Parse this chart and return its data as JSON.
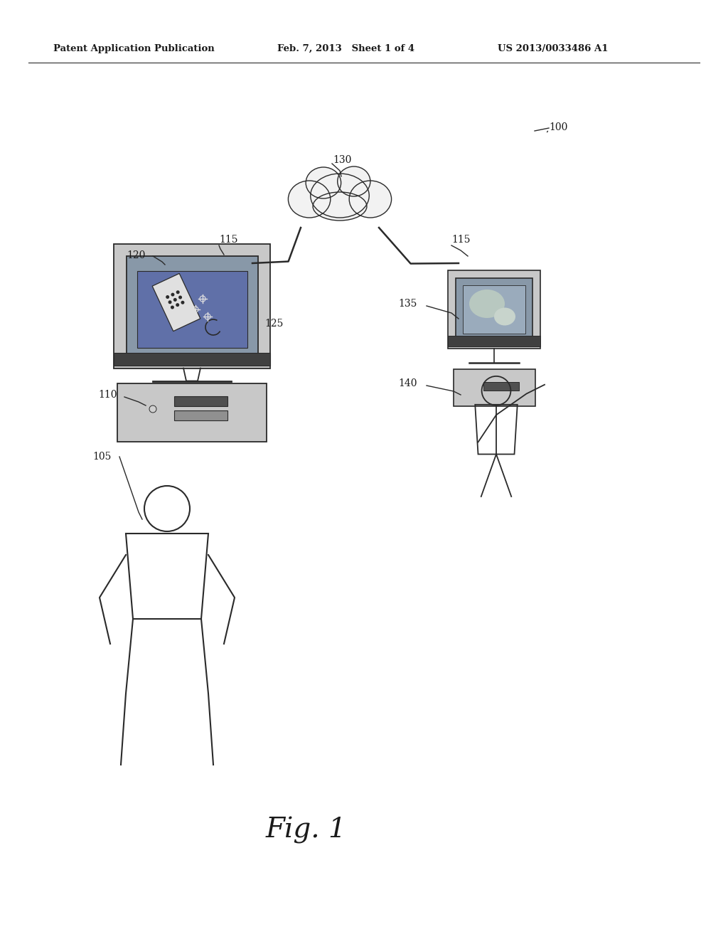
{
  "bg_color": "#ffffff",
  "header_text": "Patent Application Publication",
  "header_date": "Feb. 7, 2013   Sheet 1 of 4",
  "header_patent": "US 2013/0033486 A1",
  "fig_label": "Fig. 1",
  "text_color": "#1a1a1a",
  "line_color": "#2a2a2a",
  "light_gray": "#c8c8c8",
  "mid_gray": "#909090",
  "dark_gray": "#606060",
  "screen_blue": "#8898a8",
  "screen_dark": "#5060a0",
  "screen_light": "#aabbc8"
}
